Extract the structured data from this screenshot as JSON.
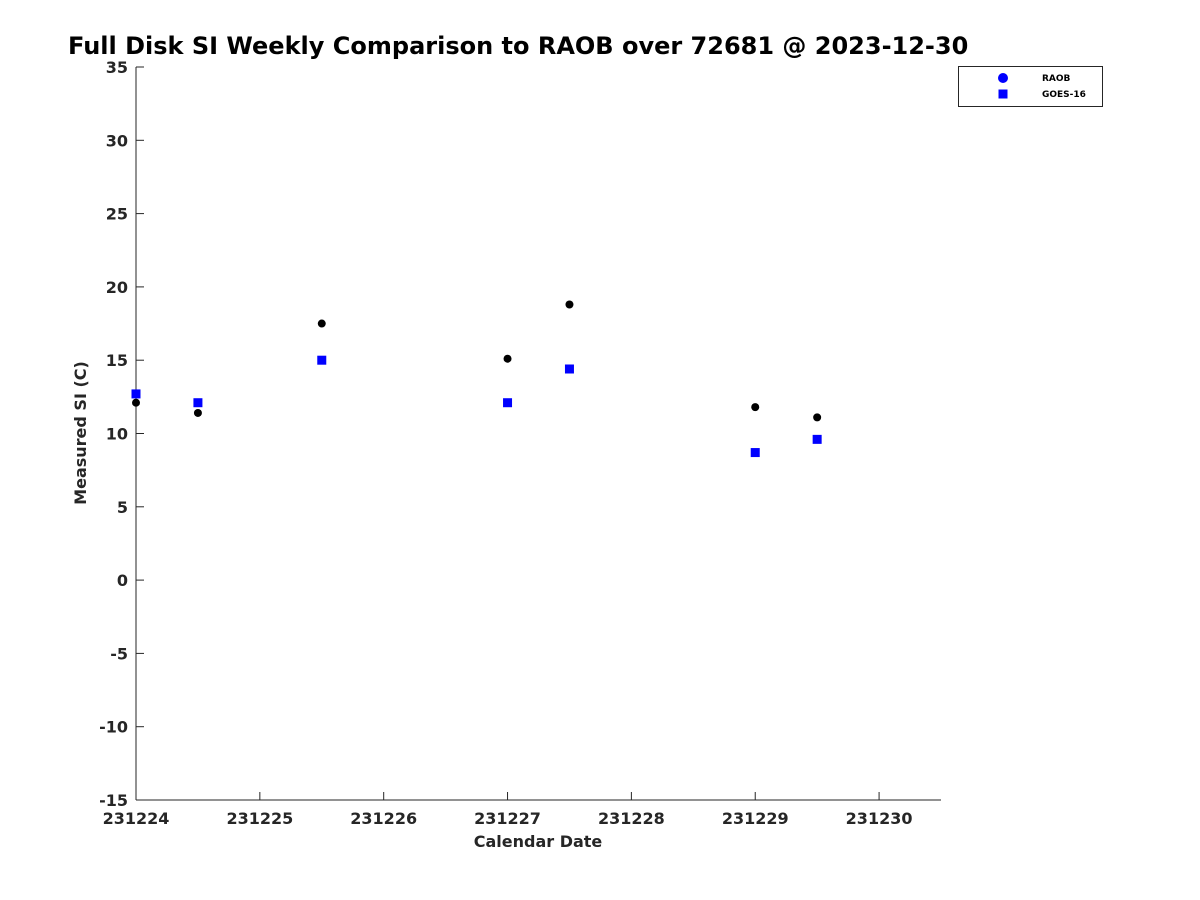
{
  "chart_data": {
    "type": "scatter",
    "title": "Full Disk SI Weekly Comparison to RAOB over 72681 @ 2023-12-30",
    "xlabel": "Calendar Date",
    "ylabel": "Measured SI (C)",
    "xlim": [
      "2023-12-24",
      "2023-12-30 12:00"
    ],
    "ylim": [
      -15,
      35
    ],
    "x_ticks": [
      "231224",
      "231225",
      "231226",
      "231227",
      "231228",
      "231229",
      "231230"
    ],
    "y_ticks": [
      -15,
      -10,
      -5,
      0,
      5,
      10,
      15,
      20,
      25,
      30,
      35
    ],
    "grid": false,
    "legend_position": "top-right",
    "series": [
      {
        "name": "RAOB",
        "marker": "circle",
        "color": "#000000",
        "legend_color": "#0000ff",
        "points": [
          {
            "x": "2023-12-24 00:00",
            "y": 12.1
          },
          {
            "x": "2023-12-24 12:00",
            "y": 11.4
          },
          {
            "x": "2023-12-25 12:00",
            "y": 17.5
          },
          {
            "x": "2023-12-27 00:00",
            "y": 15.1
          },
          {
            "x": "2023-12-27 12:00",
            "y": 18.8
          },
          {
            "x": "2023-12-29 00:00",
            "y": 11.8
          },
          {
            "x": "2023-12-29 12:00",
            "y": 11.1
          }
        ]
      },
      {
        "name": "GOES-16",
        "marker": "square",
        "color": "#0000ff",
        "legend_color": "#0000ff",
        "points": [
          {
            "x": "2023-12-24 00:00",
            "y": 12.7
          },
          {
            "x": "2023-12-24 12:00",
            "y": 12.1
          },
          {
            "x": "2023-12-25 12:00",
            "y": 15.0
          },
          {
            "x": "2023-12-27 00:00",
            "y": 12.1
          },
          {
            "x": "2023-12-27 12:00",
            "y": 14.4
          },
          {
            "x": "2023-12-29 00:00",
            "y": 8.7
          },
          {
            "x": "2023-12-29 12:00",
            "y": 9.6
          }
        ]
      }
    ]
  }
}
